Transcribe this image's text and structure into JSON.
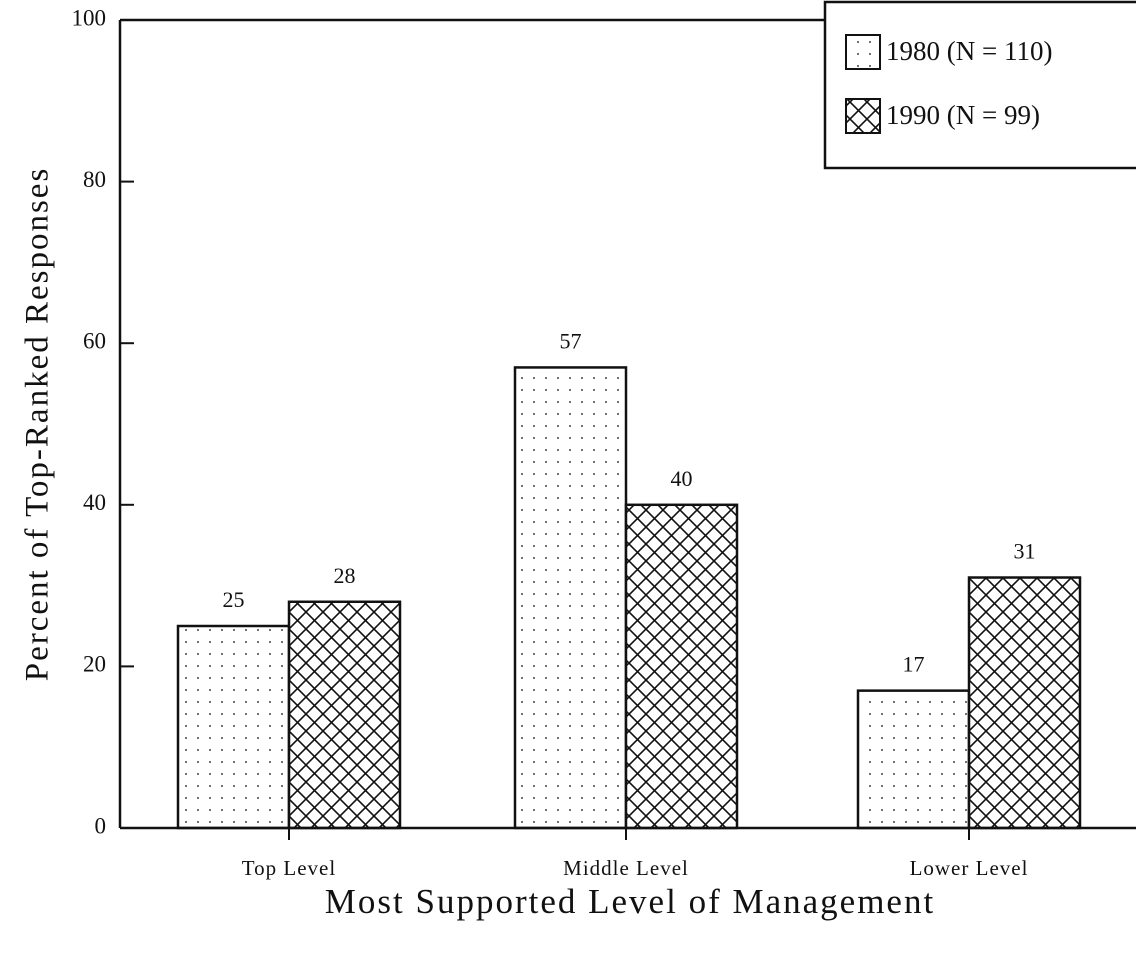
{
  "chart_data": {
    "type": "bar",
    "xlabel": "Most Supported Level of Management",
    "ylabel": "Percent of Top-Ranked Responses",
    "categories": [
      "Top Level",
      "Middle Level",
      "Lower Level"
    ],
    "series": [
      {
        "name": "1980 (N = 110)",
        "color": "#ffffff",
        "pattern": "dots",
        "values": [
          25,
          57,
          17
        ]
      },
      {
        "name": "1990 (N = 99)",
        "color": "#ffffff",
        "pattern": "crosshatch",
        "values": [
          28,
          40,
          31
        ]
      }
    ],
    "ylim": [
      0,
      100
    ],
    "yticks": [
      0,
      20,
      40,
      60,
      80,
      100
    ],
    "legend": "upper right"
  }
}
